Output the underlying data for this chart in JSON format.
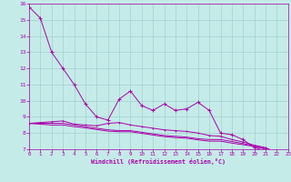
{
  "xlabel": "Windchill (Refroidissement éolien,°C)",
  "xlim": [
    0,
    23
  ],
  "ylim": [
    7,
    16
  ],
  "yticks": [
    7,
    8,
    9,
    10,
    11,
    12,
    13,
    14,
    15,
    16
  ],
  "xticks": [
    0,
    1,
    2,
    3,
    4,
    5,
    6,
    7,
    8,
    9,
    10,
    11,
    12,
    13,
    14,
    15,
    16,
    17,
    18,
    19,
    20,
    21,
    22,
    23
  ],
  "background_color": "#c5ebe8",
  "grid_color": "#a0d0ce",
  "line_color": "#aa00aa",
  "line1_x": [
    0,
    1,
    2,
    3,
    4,
    5,
    6,
    7,
    8,
    9,
    10,
    11,
    12,
    13,
    14,
    15,
    16,
    17,
    18,
    19,
    20,
    21,
    22
  ],
  "line1_y": [
    15.8,
    15.1,
    13.0,
    12.0,
    11.0,
    9.8,
    9.0,
    8.8,
    10.1,
    10.6,
    9.7,
    9.4,
    9.8,
    9.4,
    9.5,
    9.9,
    9.4,
    8.0,
    7.9,
    7.6,
    7.1,
    6.9,
    6.8
  ],
  "line2_x": [
    0,
    1,
    2,
    3,
    4,
    5,
    6,
    7,
    8,
    9,
    10,
    11,
    12,
    13,
    14,
    15,
    16,
    17,
    18,
    19,
    20,
    21,
    22
  ],
  "line2_y": [
    8.6,
    8.65,
    8.7,
    8.75,
    8.55,
    8.5,
    8.45,
    8.6,
    8.65,
    8.5,
    8.4,
    8.3,
    8.2,
    8.15,
    8.1,
    8.0,
    7.85,
    7.8,
    7.6,
    7.45,
    7.25,
    7.1,
    6.8
  ],
  "line3_x": [
    0,
    1,
    2,
    3,
    4,
    5,
    6,
    7,
    8,
    9,
    10,
    11,
    12,
    13,
    14,
    15,
    16,
    17,
    18,
    19,
    20,
    21,
    22
  ],
  "line3_y": [
    8.6,
    8.6,
    8.6,
    8.6,
    8.5,
    8.4,
    8.3,
    8.2,
    8.15,
    8.15,
    8.05,
    7.95,
    7.85,
    7.8,
    7.75,
    7.65,
    7.6,
    7.6,
    7.48,
    7.35,
    7.2,
    7.05,
    6.8
  ],
  "line4_x": [
    0,
    1,
    2,
    3,
    4,
    5,
    6,
    7,
    8,
    9,
    10,
    11,
    12,
    13,
    14,
    15,
    16,
    17,
    18,
    19,
    20,
    21,
    22
  ],
  "line4_y": [
    8.6,
    8.55,
    8.5,
    8.5,
    8.4,
    8.32,
    8.22,
    8.12,
    8.08,
    8.08,
    7.98,
    7.88,
    7.78,
    7.72,
    7.68,
    7.58,
    7.5,
    7.5,
    7.38,
    7.28,
    7.18,
    7.0,
    6.8
  ]
}
